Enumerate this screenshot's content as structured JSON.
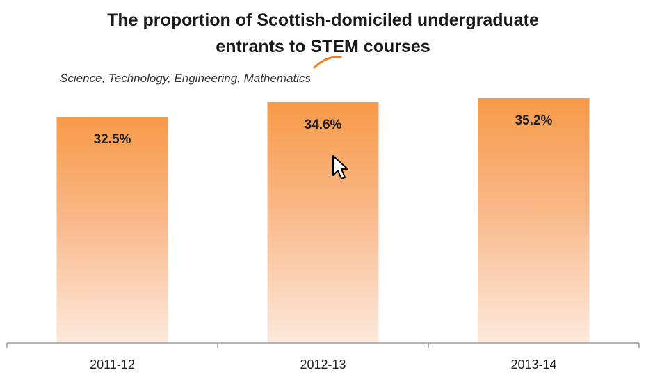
{
  "chart_data": {
    "type": "bar",
    "title_line1": "The proportion of Scottish-domiciled undergraduate",
    "title_line2": "entrants to STEM courses",
    "subtitle": "Science, Technology, Engineering, Mathematics",
    "categories": [
      "2011-12",
      "2012-13",
      "2013-14"
    ],
    "values": [
      32.5,
      34.6,
      35.2
    ],
    "data_labels": [
      "32.5%",
      "34.6%",
      "35.2%"
    ],
    "ylim": [
      0,
      37.5
    ],
    "grid": false,
    "legend": "none",
    "xlabel": "",
    "ylabel": ""
  },
  "colors": {
    "bar_top": "#f79a48",
    "bar_bottom": "#fde9dc",
    "axis": "#9a9a9a",
    "accent_swoosh": "#f07d1e"
  },
  "icons": {
    "cursor": "mouse-pointer-icon"
  }
}
